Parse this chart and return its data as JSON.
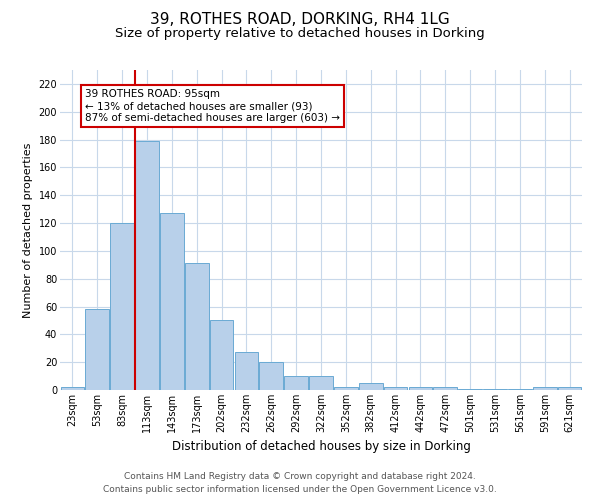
{
  "title": "39, ROTHES ROAD, DORKING, RH4 1LG",
  "subtitle": "Size of property relative to detached houses in Dorking",
  "xlabel": "Distribution of detached houses by size in Dorking",
  "ylabel": "Number of detached properties",
  "categories": [
    "23sqm",
    "53sqm",
    "83sqm",
    "113sqm",
    "143sqm",
    "173sqm",
    "202sqm",
    "232sqm",
    "262sqm",
    "292sqm",
    "322sqm",
    "352sqm",
    "382sqm",
    "412sqm",
    "442sqm",
    "472sqm",
    "501sqm",
    "531sqm",
    "561sqm",
    "591sqm",
    "621sqm"
  ],
  "values": [
    2,
    58,
    120,
    179,
    127,
    91,
    50,
    27,
    20,
    10,
    10,
    2,
    5,
    2,
    2,
    2,
    1,
    1,
    1,
    2,
    2
  ],
  "bar_color": "#b8d0ea",
  "bar_edge_color": "#6aaad4",
  "grid_color": "#c8d8ea",
  "vline_color": "#cc0000",
  "vline_x_idx": 2.5,
  "annotation_text": "39 ROTHES ROAD: 95sqm\n← 13% of detached houses are smaller (93)\n87% of semi-detached houses are larger (603) →",
  "annotation_box_color": "#ffffff",
  "annotation_box_edge": "#cc0000",
  "footer1": "Contains HM Land Registry data © Crown copyright and database right 2024.",
  "footer2": "Contains public sector information licensed under the Open Government Licence v3.0.",
  "ylim": [
    0,
    230
  ],
  "yticks": [
    0,
    20,
    40,
    60,
    80,
    100,
    120,
    140,
    160,
    180,
    200,
    220
  ],
  "title_fontsize": 11,
  "subtitle_fontsize": 9.5,
  "xlabel_fontsize": 8.5,
  "ylabel_fontsize": 8,
  "tick_fontsize": 7,
  "footer_fontsize": 6.5,
  "annotation_fontsize": 7.5
}
